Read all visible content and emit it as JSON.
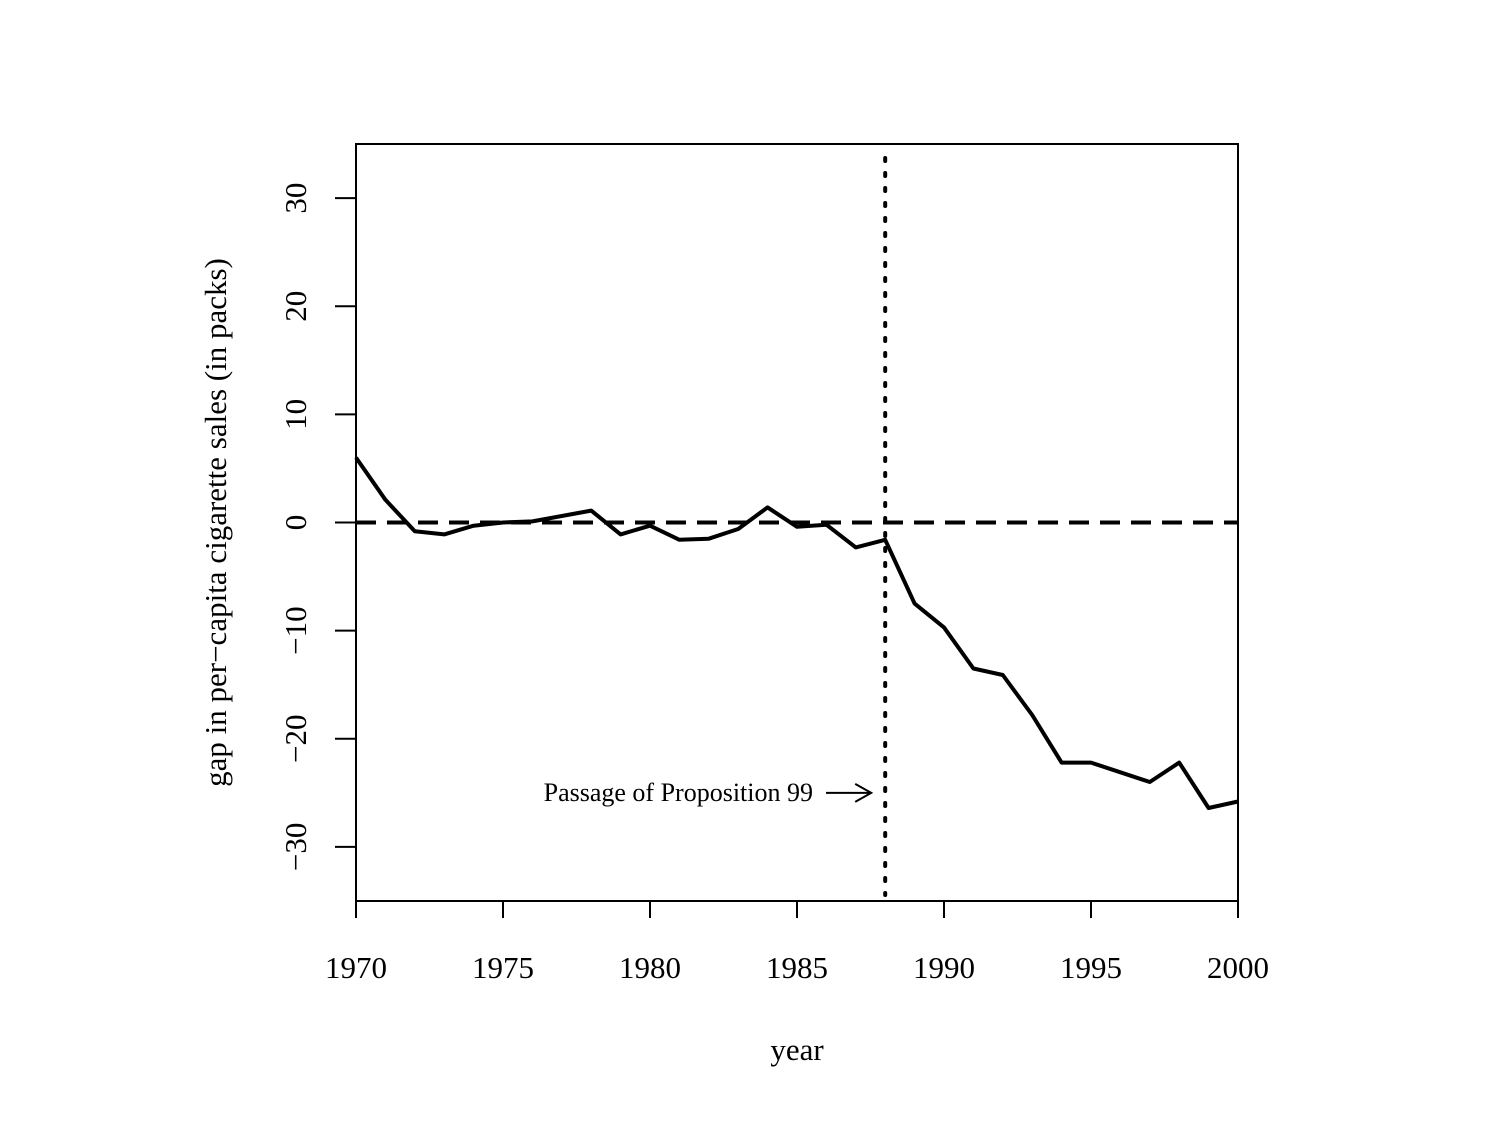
{
  "chart_data": {
    "type": "line",
    "title": "",
    "xlabel": "year",
    "ylabel": "gap in per−capita cigarette sales (in packs)",
    "xlim": [
      1970,
      2000
    ],
    "ylim": [
      -35,
      35
    ],
    "x_ticks": [
      1970,
      1975,
      1980,
      1985,
      1990,
      1995,
      2000
    ],
    "y_ticks": [
      -30,
      -20,
      -10,
      0,
      10,
      20,
      30
    ],
    "x_tick_labels": [
      "1970",
      "1975",
      "1980",
      "1985",
      "1990",
      "1995",
      "2000"
    ],
    "y_tick_labels": [
      "−30",
      "−20",
      "−10",
      "0",
      "10",
      "20",
      "30"
    ],
    "grid": false,
    "series": [
      {
        "x": [
          1970,
          1971,
          1972,
          1973,
          1974,
          1975,
          1976,
          1977,
          1978,
          1979,
          1980,
          1981,
          1982,
          1983,
          1984,
          1985,
          1986,
          1987,
          1988,
          1989,
          1990,
          1991,
          1992,
          1993,
          1994,
          1995,
          1996,
          1997,
          1998,
          1999,
          2000
        ],
        "values": [
          6.0,
          2.1,
          -0.8,
          -1.1,
          -0.3,
          0.0,
          0.1,
          0.6,
          1.1,
          -1.1,
          -0.3,
          -1.6,
          -1.5,
          -0.6,
          1.4,
          -0.4,
          -0.2,
          -2.3,
          -1.6,
          -7.5,
          -9.7,
          -13.5,
          -14.1,
          -17.8,
          -22.2,
          -22.2,
          -23.1,
          -24.0,
          -22.2,
          -26.4,
          -25.8
        ],
        "color": "#000000",
        "style": "solid"
      }
    ],
    "reference_lines": [
      {
        "orientation": "horizontal",
        "value": 0,
        "style": "dashed",
        "color": "#000000"
      },
      {
        "orientation": "vertical",
        "value": 1988,
        "style": "dotted",
        "color": "#000000"
      }
    ],
    "annotations": [
      {
        "text": "Passage of Proposition 99",
        "arrow_to": [
          1988,
          -25
        ]
      }
    ]
  }
}
